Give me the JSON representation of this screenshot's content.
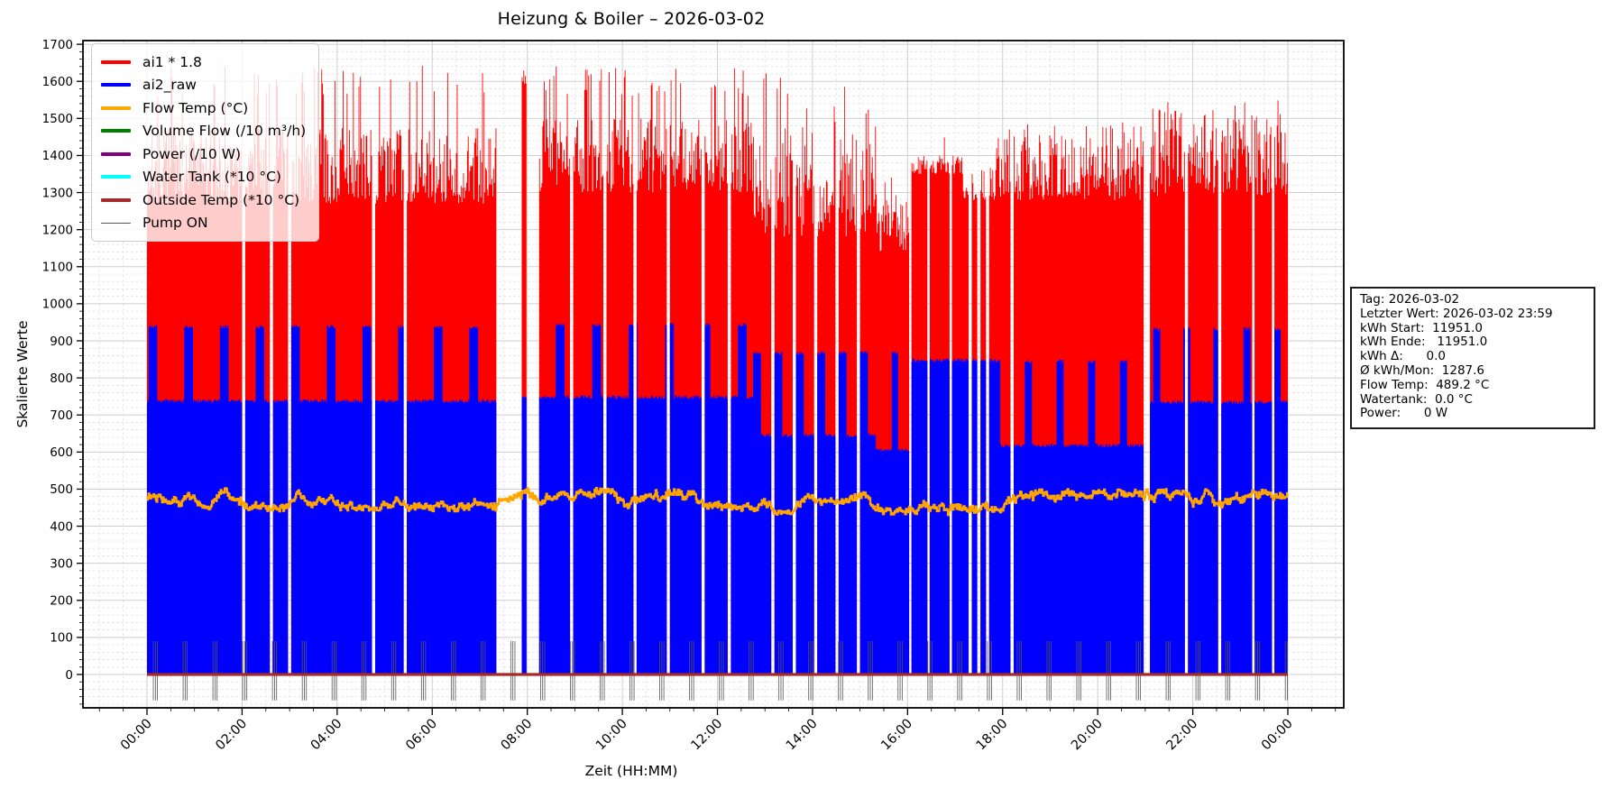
{
  "title": "Heizung & Boiler – 2026-03-02",
  "axes": {
    "xlabel": "Zeit (HH:MM)",
    "ylabel": "Skalierte Werte"
  },
  "stats_box": {
    "lines": [
      "Tag: 2026-03-02",
      "Letzter Wert: 2026-03-02 23:59",
      "kWh Start:  11951.0",
      "kWh Ende:   11951.0",
      "kWh Δ:      0.0",
      "Ø kWh/Mon:  1287.6",
      "Flow Temp:  489.2 °C",
      "Watertank:  0.0 °C",
      "Power:      0 W"
    ]
  },
  "chart_data": {
    "type": "area",
    "title": "Heizung & Boiler – 2026-03-02",
    "xlabel": "Zeit (HH:MM)",
    "ylabel": "Skalierte Werte",
    "x_range_minutes": [
      0,
      1440
    ],
    "ylim": [
      -90,
      1710
    ],
    "y_ticks": [
      0,
      100,
      200,
      300,
      400,
      500,
      600,
      700,
      800,
      900,
      1000,
      1100,
      1200,
      1300,
      1400,
      1500,
      1600,
      1700
    ],
    "x_ticks": [
      "00:00",
      "02:00",
      "04:00",
      "06:00",
      "08:00",
      "10:00",
      "12:00",
      "14:00",
      "16:00",
      "18:00",
      "20:00",
      "22:00",
      "00:00"
    ],
    "grid": {
      "major": "solid",
      "minor": "dashed",
      "x_minor_step_min": 30,
      "y_minor_step": 20
    },
    "legend_position": "upper-left",
    "seed": 7,
    "series": [
      {
        "name": "ai1 * 1.8",
        "color": "#ff0000",
        "role": "area",
        "legend_lw": 4
      },
      {
        "name": "ai2_raw",
        "color": "#0000ff",
        "role": "area",
        "legend_lw": 4
      },
      {
        "name": "Flow Temp (°C)",
        "color": "#ffa500",
        "role": "line",
        "legend_lw": 4,
        "mean": 472,
        "band": [
          445,
          505
        ],
        "last_value": 489.2
      },
      {
        "name": "Volume Flow (/10 m³/h)",
        "color": "#008000",
        "role": "line",
        "legend_lw": 4,
        "constant_value": 0
      },
      {
        "name": "Power (/10 W)",
        "color": "#800080",
        "role": "line",
        "legend_lw": 4,
        "constant_value": 0
      },
      {
        "name": "Water Tank (*10 °C)",
        "color": "#00ffff",
        "role": "line",
        "legend_lw": 4,
        "constant_value": 0
      },
      {
        "name": "Outside Temp (*10 °C)",
        "color": "#a52a2a",
        "role": "line",
        "legend_lw": 4,
        "constant_value": 0,
        "line_width": 3.2
      },
      {
        "name": "Pump ON",
        "color": "#555555",
        "role": "event-lines",
        "legend_lw": 1.2,
        "cluster_start_min": 8,
        "cluster_period_min": 37.6,
        "line_offsets_min": [
          0,
          2.6,
          5.2
        ],
        "y_span": [
          90,
          -70
        ]
      }
    ],
    "envelope_segments": [
      {
        "t0": 0,
        "t1": 441,
        "blue_base": 738,
        "spike": {
          "period": 45,
          "width": 11,
          "level": 938,
          "phase": 2
        },
        "red_lo": 1270,
        "red_hi": 1475,
        "peak_prob": 0.1,
        "peak_lo": 1550,
        "peak_hi": 1645
      },
      {
        "t0": 441,
        "t1": 473,
        "gap": true
      },
      {
        "t0": 473,
        "t1": 479,
        "blue_base": 752,
        "red_lo": 1590,
        "red_hi": 1632,
        "peak_prob": 0
      },
      {
        "t0": 479,
        "t1": 495,
        "gap": true
      },
      {
        "t0": 495,
        "t1": 765,
        "blue_base": 748,
        "spike": {
          "period": 46,
          "width": 11,
          "level": 944,
          "phase": 10
        },
        "red_lo": 1300,
        "red_hi": 1500,
        "peak_prob": 0.12,
        "peak_lo": 1560,
        "peak_hi": 1645
      },
      {
        "t0": 765,
        "t1": 920,
        "cycle": [
          {
            "kind": "data",
            "len": 10,
            "level": 868
          },
          {
            "kind": "data",
            "len": 13,
            "level": 645
          },
          {
            "kind": "gap",
            "len": 4
          }
        ],
        "red_lo": 1180,
        "red_hi": 1480,
        "peak_prob": 0.05,
        "peak_lo": 1490,
        "peak_hi": 1630
      },
      {
        "t0": 920,
        "t1": 965,
        "blue_base": 606,
        "spike": {
          "period": 40,
          "width": 8,
          "level": 868,
          "phase": 20
        },
        "red_lo": 1140,
        "red_hi": 1300,
        "peak_prob": 0.02,
        "peak_lo": 1300,
        "peak_hi": 1370
      },
      {
        "t0": 965,
        "t1": 1030,
        "blue_base": 848,
        "red_lo": 1350,
        "red_hi": 1400,
        "peak_prob": 0.03,
        "peak_lo": 1400,
        "peak_hi": 1460
      },
      {
        "t0": 1030,
        "t1": 1070,
        "cycle": [
          {
            "kind": "data",
            "len": 7,
            "level": 848
          },
          {
            "kind": "gap",
            "len": 4
          }
        ],
        "red_lo": 1280,
        "red_hi": 1370,
        "peak_prob": 0
      },
      {
        "t0": 1070,
        "t1": 1258,
        "blue_base": 618,
        "spike": {
          "period": 40,
          "width": 9,
          "level": 845,
          "phase": 28
        },
        "red_lo": 1280,
        "red_hi": 1460,
        "peak_prob": 0.05,
        "peak_lo": 1460,
        "peak_hi": 1490
      },
      {
        "t0": 1258,
        "t1": 1266,
        "gap": true
      },
      {
        "t0": 1266,
        "t1": 1440,
        "blue_base": 735,
        "spike": {
          "period": 38,
          "width": 9,
          "level": 933,
          "phase": 16
        },
        "red_lo": 1290,
        "red_hi": 1505,
        "peak_prob": 0.08,
        "peak_lo": 1505,
        "peak_hi": 1550
      }
    ],
    "data_gaps_minutes": [
      [
        120,
        124
      ],
      [
        155,
        159
      ],
      [
        178,
        182
      ],
      [
        284,
        288
      ],
      [
        324,
        328
      ],
      [
        534,
        538
      ],
      [
        576,
        580
      ],
      [
        614,
        618
      ],
      [
        656,
        660
      ],
      [
        700,
        704
      ],
      [
        733,
        737
      ],
      [
        962,
        965
      ],
      [
        985,
        988
      ],
      [
        1013,
        1016
      ],
      [
        1090,
        1094
      ],
      [
        1310,
        1314
      ],
      [
        1352,
        1356
      ],
      [
        1395,
        1398
      ],
      [
        1420,
        1423
      ]
    ],
    "zero_line_series": "Outside Temp (*10 °C)"
  }
}
